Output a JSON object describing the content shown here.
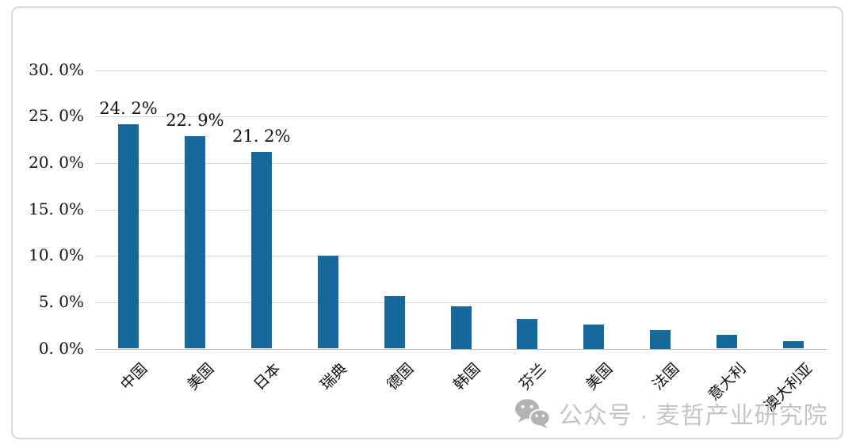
{
  "chart_data": {
    "type": "bar",
    "title": "",
    "xlabel": "",
    "ylabel": "",
    "categories": [
      "中国",
      "美国",
      "日本",
      "瑞典",
      "德国",
      "韩国",
      "芬兰",
      "美国",
      "法国",
      "意大利",
      "澳大利亚"
    ],
    "values": [
      24.2,
      22.9,
      21.2,
      10.0,
      5.7,
      4.6,
      3.2,
      2.6,
      2.0,
      1.5,
      0.8
    ],
    "data_labels": [
      "24. 2%",
      "22. 9%",
      "21. 2%",
      "",
      "",
      "",
      "",
      "",
      "",
      "",
      ""
    ],
    "y_ticks": [
      {
        "value": 0,
        "label": "0. 0%"
      },
      {
        "value": 5,
        "label": "5. 0%"
      },
      {
        "value": 10,
        "label": "10. 0%"
      },
      {
        "value": 15,
        "label": "15. 0%"
      },
      {
        "value": 20,
        "label": "20. 0%"
      },
      {
        "value": 25,
        "label": "25. 0%"
      },
      {
        "value": 30,
        "label": "30. 0%"
      }
    ],
    "ylim": [
      0,
      30
    ],
    "grid": true,
    "legend_position": "none",
    "bar_color": "#17699d",
    "gridline_color": "#d9d9d9",
    "axisline_color": "#bfbfbf",
    "text_color": "#111111"
  },
  "watermark": {
    "icon": "wechat-icon",
    "text": "公众号 · 麦哲产业研究院",
    "color": "#c3c3c3"
  }
}
